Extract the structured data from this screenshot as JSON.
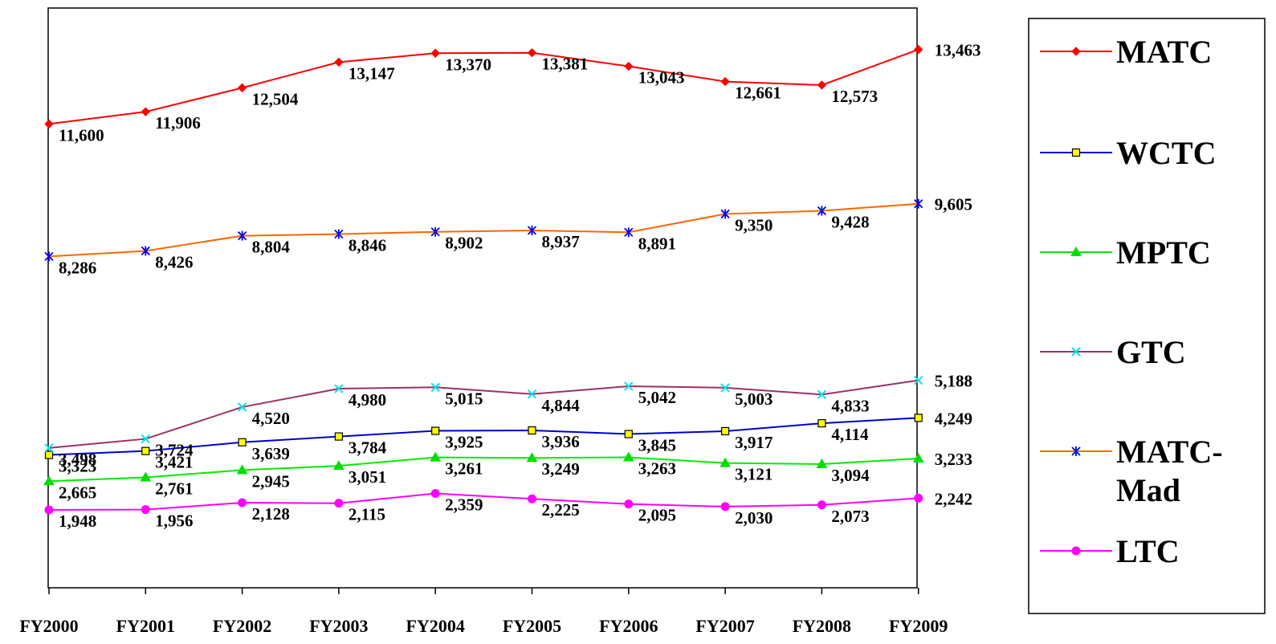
{
  "chart_data": {
    "type": "line",
    "title": "",
    "xlabel": "",
    "ylabel": "",
    "categories": [
      "FY2000",
      "FY2001",
      "FY2002",
      "FY2003",
      "FY2004",
      "FY2005",
      "FY2006",
      "FY2007",
      "FY2008",
      "FY2009"
    ],
    "ylim": [
      0,
      14500
    ],
    "grid": false,
    "legend": "right",
    "series": [
      {
        "name": "MATC",
        "color": "#ff0000",
        "marker": "diamond",
        "marker_color": "#ff0000",
        "values": [
          11600,
          11906,
          12504,
          13147,
          13370,
          13381,
          13043,
          12661,
          12573,
          13463
        ],
        "labels": [
          "11,600",
          "11,906",
          "12,504",
          "13,147",
          "13,370",
          "13,381",
          "13,043",
          "12,661",
          "12,573",
          "13,463"
        ]
      },
      {
        "name": "WCTC",
        "color": "#0000cc",
        "marker": "square",
        "marker_color": "#ffff00",
        "values": [
          3323,
          3421,
          3639,
          3784,
          3925,
          3936,
          3845,
          3917,
          4114,
          4249
        ],
        "labels": [
          "3,323",
          "3,421",
          "3,639",
          "3,784",
          "3,925",
          "3,936",
          "3,845",
          "3,917",
          "4,114",
          "4,249"
        ]
      },
      {
        "name": "MPTC",
        "color": "#00ee00",
        "marker": "triangle",
        "marker_color": "#00dd00",
        "values": [
          2665,
          2761,
          2945,
          3051,
          3261,
          3249,
          3263,
          3121,
          3094,
          3233
        ],
        "labels": [
          "2,665",
          "2,761",
          "2,945",
          "3,051",
          "3,261",
          "3,249",
          "3,263",
          "3,121",
          "3,094",
          "3,233"
        ]
      },
      {
        "name": "GTC",
        "color": "#993366",
        "marker": "x",
        "marker_color": "#00e5ee",
        "values": [
          3498,
          3724,
          4520,
          4980,
          5015,
          4844,
          5042,
          5003,
          4833,
          5188
        ],
        "labels": [
          "3,498",
          "3,724",
          "4,520",
          "4,980",
          "5,015",
          "4,844",
          "5,042",
          "5,003",
          "4,833",
          "5,188"
        ]
      },
      {
        "name": "MATC-Mad",
        "legend_lines": [
          "MATC-",
          "Mad"
        ],
        "color": "#ff6600",
        "marker": "asterisk",
        "marker_color": "#0000ee",
        "values": [
          8286,
          8426,
          8804,
          8846,
          8902,
          8937,
          8891,
          9350,
          9428,
          9605
        ],
        "labels": [
          "8,286",
          "8,426",
          "8,804",
          "8,846",
          "8,902",
          "8,937",
          "8,891",
          "9,350",
          "9,428",
          "9,605"
        ]
      },
      {
        "name": "LTC",
        "color": "#ff00ff",
        "marker": "circle",
        "marker_color": "#ff00ff",
        "values": [
          1948,
          1956,
          2128,
          2115,
          2359,
          2225,
          2095,
          2030,
          2073,
          2242
        ],
        "labels": [
          "1,948",
          "1,956",
          "2,128",
          "2,115",
          "2,359",
          "2,225",
          "2,095",
          "2,030",
          "2,073",
          "2,242"
        ]
      }
    ]
  }
}
